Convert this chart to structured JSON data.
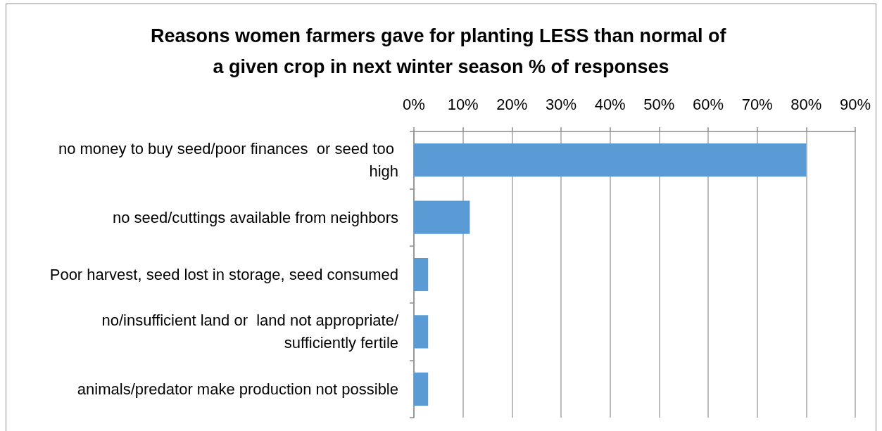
{
  "chart_data": {
    "type": "bar",
    "orientation": "horizontal",
    "title": "Reasons women farmers gave for planting LESS than normal of a given crop in next winter season % of responses",
    "categories": [
      "no money to buy seed/poor finances  or seed too high",
      "no seed/cuttings available from neighbors",
      "Poor harvest, seed lost in storage, seed consumed",
      "no/insufficient land or  land not appropriate/sufficiently fertile",
      "animals/predator make production not possible"
    ],
    "values": [
      80,
      11.4,
      2.9,
      2.9,
      2.9
    ],
    "color": "#5b9bd5",
    "xlim": [
      0,
      90
    ],
    "xticks": [
      {
        "value": 0,
        "label": "0%"
      },
      {
        "value": 10,
        "label": "10%"
      },
      {
        "value": 20,
        "label": "20%"
      },
      {
        "value": 30,
        "label": "30%"
      },
      {
        "value": 40,
        "label": "40%"
      },
      {
        "value": 50,
        "label": "50%"
      },
      {
        "value": 60,
        "label": "60%"
      },
      {
        "value": 70,
        "label": "70%"
      },
      {
        "value": 80,
        "label": "80%"
      },
      {
        "value": 90,
        "label": "90%"
      }
    ],
    "grid": "x"
  }
}
